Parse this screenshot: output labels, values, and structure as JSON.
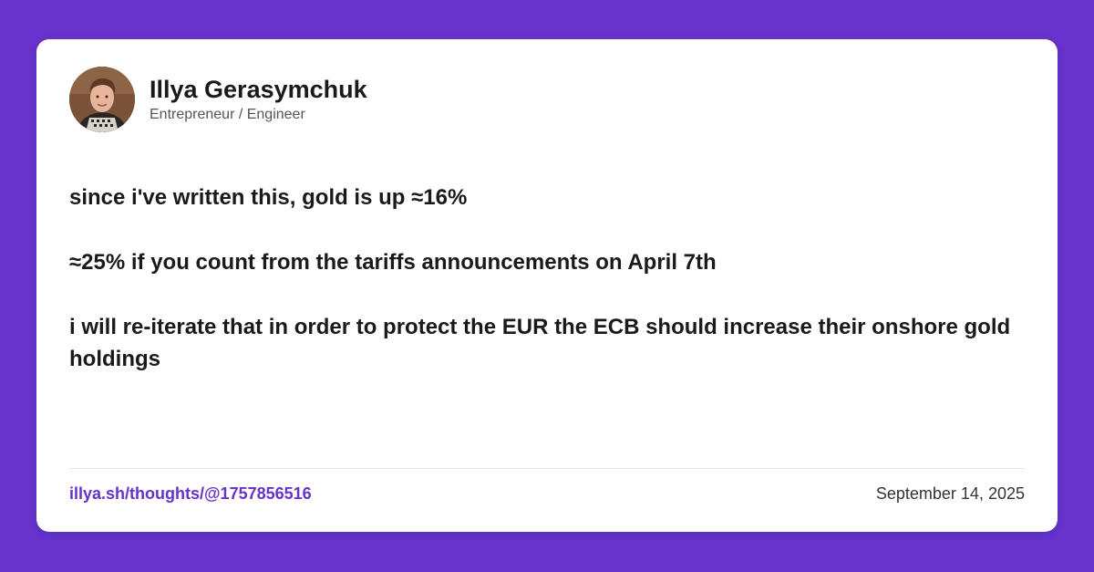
{
  "author": {
    "name": "Illya Gerasymchuk",
    "role": "Entrepreneur / Engineer",
    "avatar_icon": "person-avatar-icon"
  },
  "post": {
    "paragraphs": [
      "since i've written this, gold is up ≈16%",
      "≈25% if you count from the tariffs announcements on April 7th",
      "i will re-iterate that in order to protect the EUR the ECB should increase their onshore gold holdings"
    ]
  },
  "footer": {
    "link": "illya.sh/thoughts/@1757856516",
    "date": "September 14, 2025"
  },
  "colors": {
    "background": "#6633cc",
    "card": "#ffffff",
    "accent": "#6633cc",
    "text": "#1a1a1a"
  }
}
